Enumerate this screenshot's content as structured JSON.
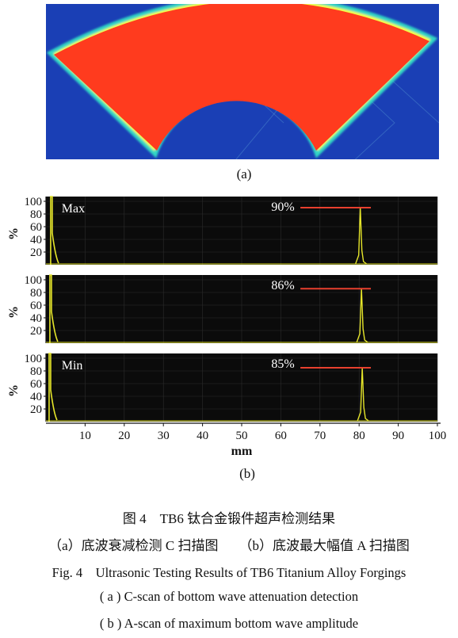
{
  "figure": {
    "subfigure_a_label": "(a)",
    "subfigure_b_label": "(b)",
    "cscan": {
      "background_color": "#1a3fb5",
      "part_color": "#ff3b1e",
      "edge_color": "#f7ff3a"
    },
    "ascan_panels": [
      {
        "left_label": "Max",
        "percent_label": "90%",
        "peak": 90
      },
      {
        "left_label": "",
        "percent_label": "86%",
        "peak": 86
      },
      {
        "left_label": "Min",
        "percent_label": "85%",
        "peak": 85
      }
    ]
  },
  "chart_data": {
    "type": "line",
    "x_label": "mm",
    "y_label": "%",
    "x_ticks": [
      10,
      20,
      30,
      40,
      50,
      60,
      70,
      80,
      90,
      100
    ],
    "y_ticks": [
      20,
      40,
      60,
      80,
      100
    ],
    "xlim": [
      0,
      100
    ],
    "ylim": [
      0,
      100
    ],
    "series": [
      {
        "name": "Max",
        "initial_pulse_x": 1.2,
        "echo_x": 80.3,
        "echo_amplitude": 90
      },
      {
        "name": "",
        "initial_pulse_x": 1.0,
        "echo_x": 80.6,
        "echo_amplitude": 86
      },
      {
        "name": "Min",
        "initial_pulse_x": 0.8,
        "echo_x": 80.8,
        "echo_amplitude": 85
      }
    ],
    "colors": {
      "plot_bg": "#0b0b0b",
      "trace": "#e6e62a",
      "gate": "#e8402e",
      "grid": "#2c2c2c"
    }
  },
  "captions": {
    "zh_title": "图 4　TB6 钛合金锻件超声检测结果",
    "zh_sub_a": "（a）底波衰减检测 C 扫描图",
    "zh_sub_b": "（b）底波最大幅值 A 扫描图",
    "en_title": "Fig. 4　Ultrasonic Testing Results of TB6 Titanium Alloy Forgings",
    "en_sub_a": "( a ) C-scan of bottom wave attenuation detection",
    "en_sub_b": "( b ) A-scan of maximum bottom wave amplitude"
  }
}
